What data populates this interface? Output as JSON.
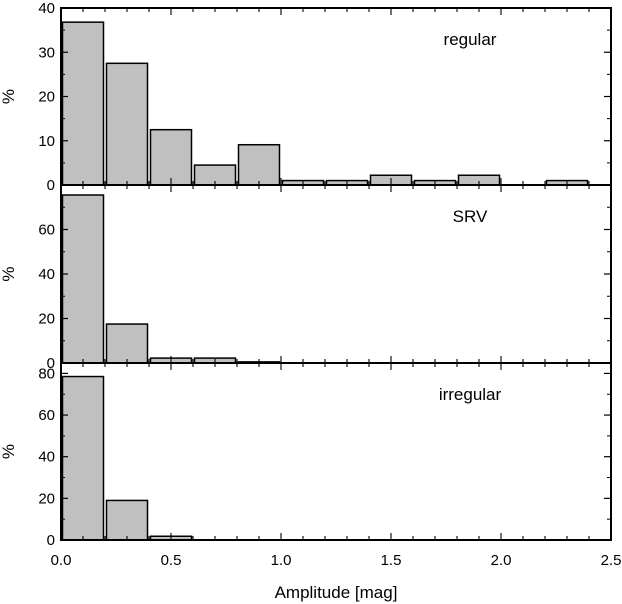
{
  "chart_data": [
    {
      "type": "bar",
      "title": "",
      "panel_label": "regular",
      "xlabel": "",
      "ylabel": "%",
      "ylim": [
        0,
        40
      ],
      "yticks": [
        0,
        10,
        20,
        30,
        40
      ],
      "xlim": [
        0,
        2.5
      ],
      "bin_width": 0.2,
      "bar_color": "#c0c0c0",
      "bars": [
        {
          "x_start": 0.0,
          "x_end": 0.2,
          "value": 36.8
        },
        {
          "x_start": 0.2,
          "x_end": 0.4,
          "value": 27.5
        },
        {
          "x_start": 0.4,
          "x_end": 0.6,
          "value": 12.5
        },
        {
          "x_start": 0.6,
          "x_end": 0.8,
          "value": 4.5
        },
        {
          "x_start": 0.8,
          "x_end": 1.0,
          "value": 9.1
        },
        {
          "x_start": 1.0,
          "x_end": 1.2,
          "value": 1.0
        },
        {
          "x_start": 1.2,
          "x_end": 1.4,
          "value": 1.0
        },
        {
          "x_start": 1.4,
          "x_end": 1.6,
          "value": 2.2
        },
        {
          "x_start": 1.6,
          "x_end": 1.8,
          "value": 1.0
        },
        {
          "x_start": 1.8,
          "x_end": 2.0,
          "value": 2.2
        },
        {
          "x_start": 2.2,
          "x_end": 2.4,
          "value": 1.0
        }
      ]
    },
    {
      "type": "bar",
      "title": "",
      "panel_label": "SRV",
      "xlabel": "",
      "ylabel": "%",
      "ylim": [
        0,
        80
      ],
      "yticks": [
        0,
        20,
        40,
        60
      ],
      "xlim": [
        0,
        2.5
      ],
      "bin_width": 0.2,
      "bar_color": "#c0c0c0",
      "bars": [
        {
          "x_start": 0.0,
          "x_end": 0.2,
          "value": 75.5
        },
        {
          "x_start": 0.2,
          "x_end": 0.4,
          "value": 17.5
        },
        {
          "x_start": 0.4,
          "x_end": 0.6,
          "value": 2.2
        },
        {
          "x_start": 0.6,
          "x_end": 0.8,
          "value": 2.2
        },
        {
          "x_start": 0.8,
          "x_end": 1.0,
          "value": 0.5
        }
      ]
    },
    {
      "type": "bar",
      "title": "",
      "panel_label": "irregular",
      "xlabel": "Amplitude [mag]",
      "ylabel": "%",
      "ylim": [
        0,
        85
      ],
      "yticks": [
        0,
        20,
        40,
        60,
        80
      ],
      "xlim": [
        0,
        2.5
      ],
      "xticks": [
        "0.0",
        "0.5",
        "1.0",
        "1.5",
        "2.0",
        "2.5"
      ],
      "bin_width": 0.2,
      "bar_color": "#c0c0c0",
      "bars": [
        {
          "x_start": 0.0,
          "x_end": 0.2,
          "value": 78.5
        },
        {
          "x_start": 0.2,
          "x_end": 0.4,
          "value": 19.0
        },
        {
          "x_start": 0.4,
          "x_end": 0.6,
          "value": 1.8
        }
      ]
    }
  ]
}
